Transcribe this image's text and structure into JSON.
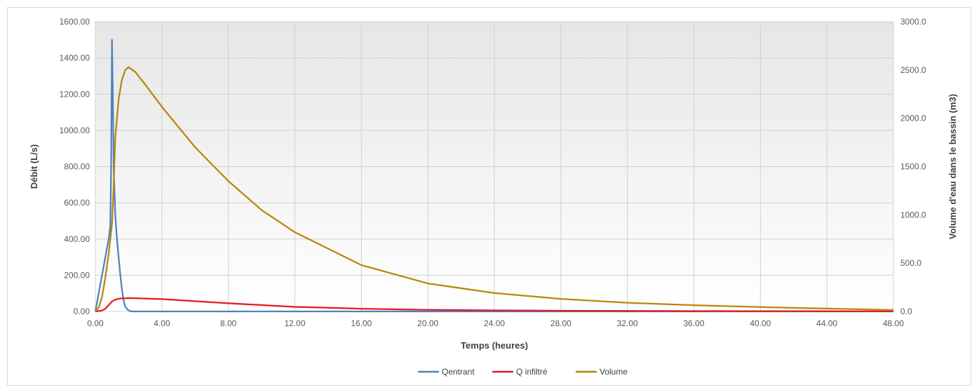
{
  "chart_data": {
    "type": "line",
    "title": "",
    "xlabel": "Temps (heures)",
    "ylabel": "Débit (L/s)",
    "y2label": "Volume d'eau dans le bassin (m3)",
    "xlim": [
      0,
      48
    ],
    "ylim": [
      0,
      1600
    ],
    "y2lim": [
      0,
      3000
    ],
    "x_ticks": [
      0,
      4,
      8,
      12,
      16,
      20,
      24,
      28,
      32,
      36,
      40,
      44,
      48
    ],
    "x_tick_labels": [
      "0.00",
      "4.00",
      "8.00",
      "12.00",
      "16.00",
      "20.00",
      "24.00",
      "28.00",
      "32.00",
      "36.00",
      "40.00",
      "44.00",
      "48.00"
    ],
    "y_ticks": [
      0,
      200,
      400,
      600,
      800,
      1000,
      1200,
      1400,
      1600
    ],
    "y_tick_labels": [
      "0.00",
      "200.00",
      "400.00",
      "600.00",
      "800.00",
      "1000.00",
      "1200.00",
      "1400.00",
      "1600.00"
    ],
    "y2_ticks": [
      0,
      500,
      1000,
      1500,
      2000,
      2500,
      3000
    ],
    "y2_tick_labels": [
      "0.0",
      "500.0",
      "1000.0",
      "1500.0",
      "2000.0",
      "2500.0",
      "3000.0"
    ],
    "grid": true,
    "legend_position": "bottom",
    "series": [
      {
        "name": "Qentrant",
        "axis": "left",
        "color": "#4f81bd",
        "x": [
          0,
          0.2,
          0.4,
          0.6,
          0.8,
          0.9,
          0.95,
          1.0,
          1.05,
          1.1,
          1.2,
          1.3,
          1.4,
          1.5,
          1.6,
          1.7,
          1.8,
          2.0,
          2.2,
          3.0,
          48
        ],
        "y": [
          0,
          100,
          200,
          300,
          400,
          470,
          800,
          1500,
          1200,
          800,
          530,
          400,
          300,
          200,
          120,
          60,
          25,
          5,
          0,
          0,
          0
        ]
      },
      {
        "name": "Q infiltré",
        "axis": "left",
        "color": "#e31a1c",
        "x": [
          0,
          0.4,
          0.6,
          0.8,
          1.0,
          1.2,
          1.4,
          1.6,
          1.8,
          2.0,
          4,
          8,
          12,
          16,
          20,
          24,
          28,
          32,
          36,
          40,
          44,
          48
        ],
        "y": [
          0,
          5,
          15,
          35,
          55,
          65,
          70,
          72,
          73,
          74,
          68,
          45,
          25,
          15,
          9,
          6,
          4,
          3,
          2,
          1.5,
          1,
          0.5
        ],
        "note": ""
      },
      {
        "name": "Volume",
        "axis": "right",
        "color": "#b8860b",
        "x": [
          0,
          0.2,
          0.4,
          0.6,
          0.8,
          1.0,
          1.1,
          1.2,
          1.4,
          1.6,
          1.8,
          2.0,
          2.4,
          3,
          4,
          6,
          8,
          10,
          12,
          16,
          20,
          24,
          28,
          32,
          36,
          40,
          44,
          48
        ],
        "y": [
          0,
          40,
          150,
          350,
          600,
          900,
          1300,
          1800,
          2200,
          2400,
          2500,
          2530,
          2480,
          2350,
          2120,
          1700,
          1350,
          1050,
          820,
          480,
          290,
          190,
          130,
          90,
          65,
          45,
          30,
          15
        ]
      }
    ]
  }
}
